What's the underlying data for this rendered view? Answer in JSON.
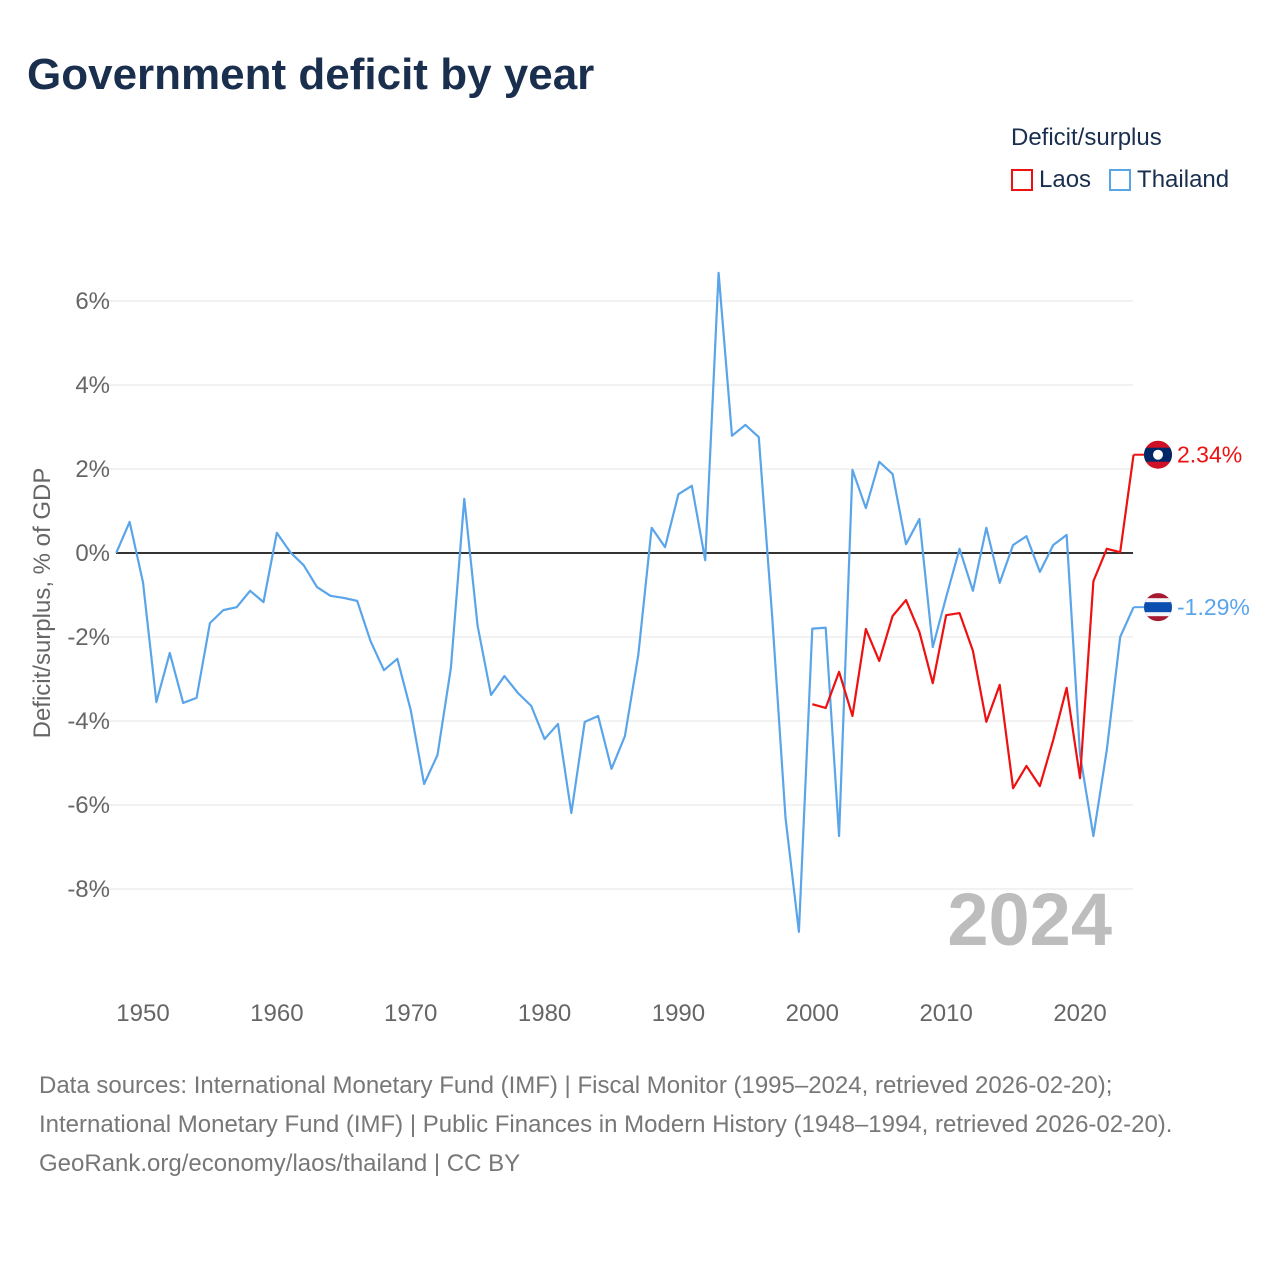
{
  "title": "Government deficit by year",
  "legend": {
    "title": "Deficit/surplus",
    "items": [
      {
        "label": "Laos",
        "color": "#ee1111"
      },
      {
        "label": "Thailand",
        "color": "#5aa5ea"
      }
    ]
  },
  "footer": {
    "sources": "Data sources: International Monetary Fund (IMF) | Fiscal Monitor (1995–2024, retrieved 2026-02-20); International Monetary Fund (IMF) | Public Finances in Modern History (1948–1994, retrieved 2026-02-20).",
    "credit": "GeoRank.org/economy/laos/thailand | CC BY"
  },
  "chart_data": {
    "type": "line",
    "title": "Government deficit by year",
    "xlabel": "",
    "ylabel": "Deficit/surplus, % of GDP",
    "xlim": [
      1948,
      2024
    ],
    "ylim": [
      -10,
      7
    ],
    "xticks": [
      1950,
      1960,
      1970,
      1980,
      1990,
      2000,
      2010,
      2020
    ],
    "yticks": [
      6,
      4,
      2,
      0,
      -2,
      -4,
      -6,
      -8
    ],
    "ytick_labels": [
      "6%",
      "4%",
      "2%",
      "0%",
      "-2%",
      "-4%",
      "-6%",
      "-8%"
    ],
    "year_watermark": "2024",
    "series": [
      {
        "name": "Thailand",
        "color": "#5aa5ea",
        "end_label": "-1.29%",
        "x": [
          1948,
          1949,
          1950,
          1951,
          1952,
          1953,
          1954,
          1955,
          1956,
          1957,
          1958,
          1959,
          1960,
          1961,
          1962,
          1963,
          1964,
          1965,
          1966,
          1967,
          1968,
          1969,
          1970,
          1971,
          1972,
          1973,
          1974,
          1975,
          1976,
          1977,
          1978,
          1979,
          1980,
          1981,
          1982,
          1983,
          1984,
          1985,
          1986,
          1987,
          1988,
          1989,
          1990,
          1991,
          1992,
          1993,
          1994,
          1995,
          1996,
          1997,
          1998,
          1999,
          2000,
          2001,
          2002,
          2003,
          2004,
          2005,
          2006,
          2007,
          2008,
          2009,
          2010,
          2011,
          2012,
          2013,
          2014,
          2015,
          2016,
          2017,
          2018,
          2019,
          2020,
          2021,
          2022,
          2023,
          2024
        ],
        "values": [
          0.0,
          0.74,
          -0.7,
          -3.55,
          -2.38,
          -3.57,
          -3.45,
          -1.67,
          -1.36,
          -1.29,
          -0.9,
          -1.17,
          0.48,
          0.02,
          -0.29,
          -0.81,
          -1.02,
          -1.07,
          -1.14,
          -2.1,
          -2.79,
          -2.52,
          -3.74,
          -5.5,
          -4.81,
          -2.74,
          1.29,
          -1.74,
          -3.38,
          -2.93,
          -3.33,
          -3.64,
          -4.43,
          -4.07,
          -6.19,
          -4.02,
          -3.88,
          -5.14,
          -4.36,
          -2.43,
          0.6,
          0.14,
          1.4,
          1.6,
          -0.17,
          6.67,
          2.79,
          3.05,
          2.76,
          -1.5,
          -6.31,
          -9.02,
          -1.8,
          -1.78,
          -6.74,
          1.98,
          1.07,
          2.17,
          1.88,
          0.21,
          0.81,
          -2.24,
          -1.05,
          0.1,
          -0.9,
          0.6,
          -0.71,
          0.19,
          0.4,
          -0.45,
          0.19,
          0.43,
          -4.8,
          -6.74,
          -4.69,
          -2.0,
          -1.29
        ]
      },
      {
        "name": "Laos",
        "color": "#ee1111",
        "end_label": "2.34%",
        "x": [
          2000,
          2001,
          2002,
          2003,
          2004,
          2005,
          2006,
          2007,
          2008,
          2009,
          2010,
          2011,
          2012,
          2013,
          2014,
          2015,
          2016,
          2017,
          2018,
          2019,
          2020,
          2021,
          2022,
          2023,
          2024
        ],
        "values": [
          -3.6,
          -3.69,
          -2.83,
          -3.88,
          -1.81,
          -2.57,
          -1.5,
          -1.12,
          -1.88,
          -3.1,
          -1.48,
          -1.43,
          -2.33,
          -4.02,
          -3.14,
          -5.6,
          -5.07,
          -5.55,
          -4.45,
          -3.21,
          -5.36,
          -0.67,
          0.1,
          0.02,
          2.34
        ]
      }
    ]
  }
}
